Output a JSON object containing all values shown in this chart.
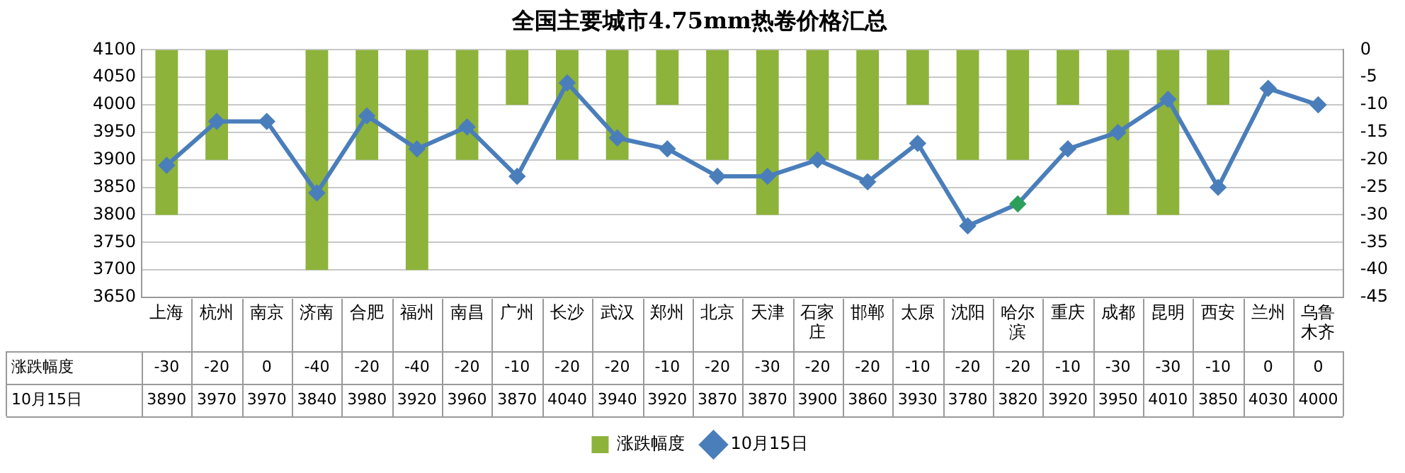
{
  "chart_data": {
    "type": "bar",
    "title": "全国主要城市4.75mm热卷价格汇总",
    "categories": [
      "上海",
      "杭州",
      "南京",
      "济南",
      "合肥",
      "福州",
      "南昌",
      "广州",
      "长沙",
      "武汉",
      "郑州",
      "北京",
      "天津",
      "石家庄",
      "邯郸",
      "太原",
      "沈阳",
      "哈尔滨",
      "重庆",
      "成都",
      "昆明",
      "西安",
      "兰州",
      "乌鲁木齐"
    ],
    "series": [
      {
        "name": "涨跌幅度",
        "axis": "y2",
        "color": "#8db33a",
        "values": [
          -30,
          -20,
          0,
          -40,
          -20,
          -40,
          -20,
          -10,
          -20,
          -20,
          -10,
          -20,
          -30,
          -20,
          -20,
          -10,
          -20,
          -20,
          -10,
          -30,
          -30,
          -10,
          0,
          0
        ]
      },
      {
        "name": "10月15日",
        "type": "line",
        "color": "#4a7ebb",
        "colors": [
          "#4a7ebb",
          "#4a7ebb",
          "#4a7ebb",
          "#4a7ebb",
          "#4a7ebb",
          "#4a7ebb",
          "#4a7ebb",
          "#4a7ebb",
          "#4a7ebb",
          "#4a7ebb",
          "#4a7ebb",
          "#4a7ebb",
          "#4a7ebb",
          "#4a7ebb",
          "#4a7ebb",
          "#4a7ebb",
          "#4a7ebb",
          "#2ca05a",
          "#4a7ebb",
          "#4a7ebb",
          "#4a7ebb",
          "#4a7ebb",
          "#4a7ebb",
          "#4a7ebb"
        ],
        "values": [
          3890,
          3970,
          3970,
          3840,
          3980,
          3920,
          3960,
          3870,
          4040,
          3940,
          3920,
          3870,
          3870,
          3900,
          3860,
          3930,
          3780,
          3820,
          3920,
          3950,
          4010,
          3850,
          4030,
          4000
        ]
      }
    ],
    "ylim": [
      3650,
      4100
    ],
    "yticks": [
      3650,
      3700,
      3750,
      3800,
      3850,
      3900,
      3950,
      4000,
      4050,
      4100
    ],
    "y2lim": [
      -45,
      0
    ],
    "y2ticks": [
      0,
      -5,
      -10,
      -15,
      -20,
      -25,
      -30,
      -35,
      -40,
      -45
    ],
    "grid": "y",
    "legend": "bottom",
    "marker": "diamond",
    "line_style": "solid",
    "data_labels": true
  }
}
